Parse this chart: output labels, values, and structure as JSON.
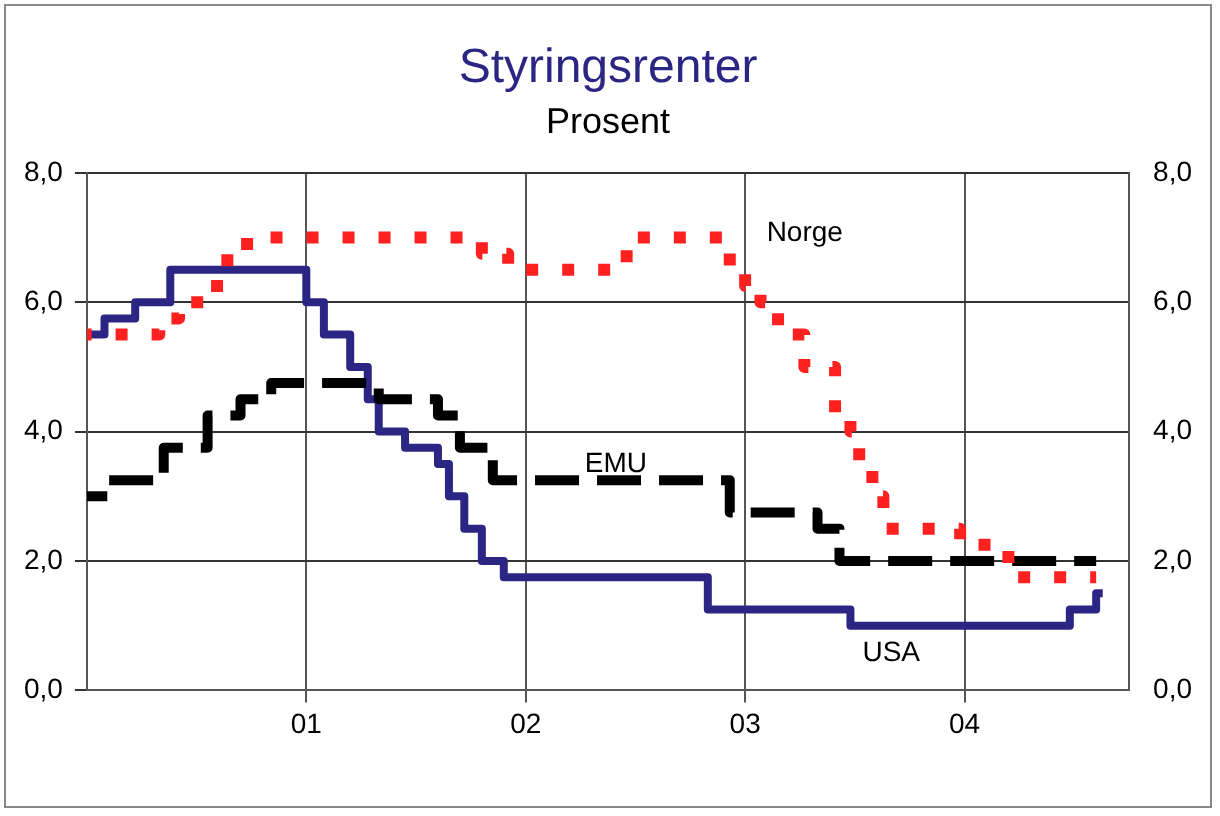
{
  "chart_data": {
    "type": "step",
    "title": "Styringsrenter",
    "subtitle": "Prosent",
    "xlim": [
      2000,
      2004.75
    ],
    "xticks": [
      {
        "value": 2001,
        "label": "01"
      },
      {
        "value": 2002,
        "label": "02"
      },
      {
        "value": 2003,
        "label": "03"
      },
      {
        "value": 2004,
        "label": "04"
      }
    ],
    "ylim": [
      0,
      8
    ],
    "yticks": [
      {
        "value": 0,
        "label": "0,0"
      },
      {
        "value": 2,
        "label": "2,0"
      },
      {
        "value": 4,
        "label": "4,0"
      },
      {
        "value": 6,
        "label": "6,0"
      },
      {
        "value": 8,
        "label": "8,0"
      }
    ],
    "y2lim": [
      0,
      8
    ],
    "y2ticks": [
      {
        "value": 0,
        "label": "0,0"
      },
      {
        "value": 2,
        "label": "2,0"
      },
      {
        "value": 4,
        "label": "4,0"
      },
      {
        "value": 6,
        "label": "6,0"
      },
      {
        "value": 8,
        "label": "8,0"
      }
    ],
    "grid": true,
    "legend": false,
    "marker": "none",
    "series": [
      {
        "name": "Norge",
        "color": "#ff2020",
        "line_style": "dotted",
        "x": [
          2000,
          2000.33,
          2000.42,
          2000.56,
          2000.64,
          2000.73,
          2001.8,
          2001.92,
          2002.46,
          2002.93,
          2003,
          2003.07,
          2003.15,
          2003.27,
          2003.41,
          2003.48,
          2003.52,
          2003.58,
          2003.63,
          2003.98,
          2004.2,
          2004.6
        ],
        "values": [
          5.5,
          5.75,
          6,
          6.25,
          6.75,
          7,
          6.75,
          6.5,
          7,
          6.5,
          6.25,
          6,
          5.5,
          5,
          4.25,
          4,
          3.5,
          3,
          2.5,
          2.25,
          1.75,
          1.75
        ]
      },
      {
        "name": "EMU",
        "color": "#000000",
        "line_style": "dashed",
        "x": [
          2000,
          2000.1,
          2000.35,
          2000.55,
          2000.7,
          2000.84,
          2001.33,
          2001.6,
          2001.7,
          2001.85,
          2002.93,
          2003.33,
          2003.43,
          2004.6
        ],
        "values": [
          3,
          3.25,
          3.75,
          4.25,
          4.5,
          4.75,
          4.5,
          4.25,
          3.75,
          3.25,
          2.75,
          2.5,
          2,
          2
        ]
      },
      {
        "name": "USA",
        "color": "#2b2683",
        "line_style": "solid",
        "x": [
          2000,
          2000.08,
          2000.22,
          2000.38,
          2001,
          2001.08,
          2001.2,
          2001.28,
          2001.33,
          2001.45,
          2001.6,
          2001.65,
          2001.72,
          2001.8,
          2001.9,
          2002.83,
          2003.48,
          2004.48,
          2004.6,
          2004.63
        ],
        "values": [
          5.5,
          5.75,
          6,
          6.5,
          6,
          5.5,
          5,
          4.5,
          4,
          3.75,
          3.5,
          3,
          2.5,
          2,
          1.75,
          1.25,
          1,
          1.25,
          1.5,
          1.5
        ]
      }
    ]
  }
}
